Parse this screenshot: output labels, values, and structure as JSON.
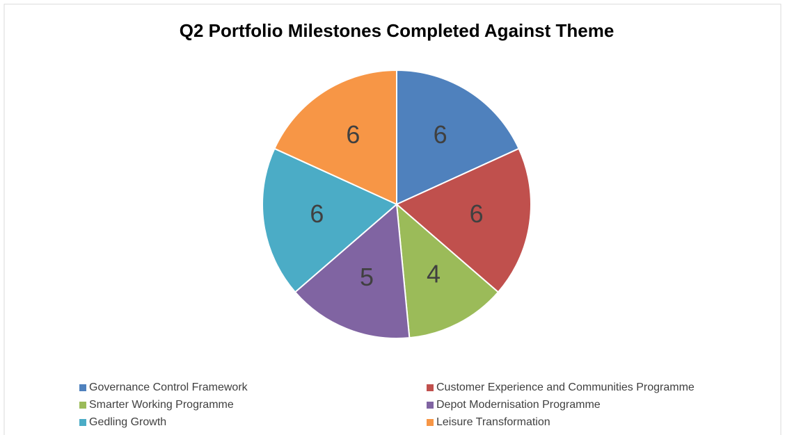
{
  "chart_data": {
    "type": "pie",
    "title": "Q2 Portfolio Milestones Completed Against Theme",
    "categories": [
      "Governance Control Framework",
      "Customer Experience and Communities Programme",
      "Smarter Working Programme",
      "Depot Modernisation Programme",
      "Gedling Growth",
      "Leisure Transformation"
    ],
    "values": [
      6,
      6,
      4,
      5,
      6,
      6
    ],
    "colors": [
      "#4f81bd",
      "#c0504d",
      "#9bbb59",
      "#8064a2",
      "#4bacc6",
      "#f79646"
    ],
    "legend": "bottom"
  }
}
